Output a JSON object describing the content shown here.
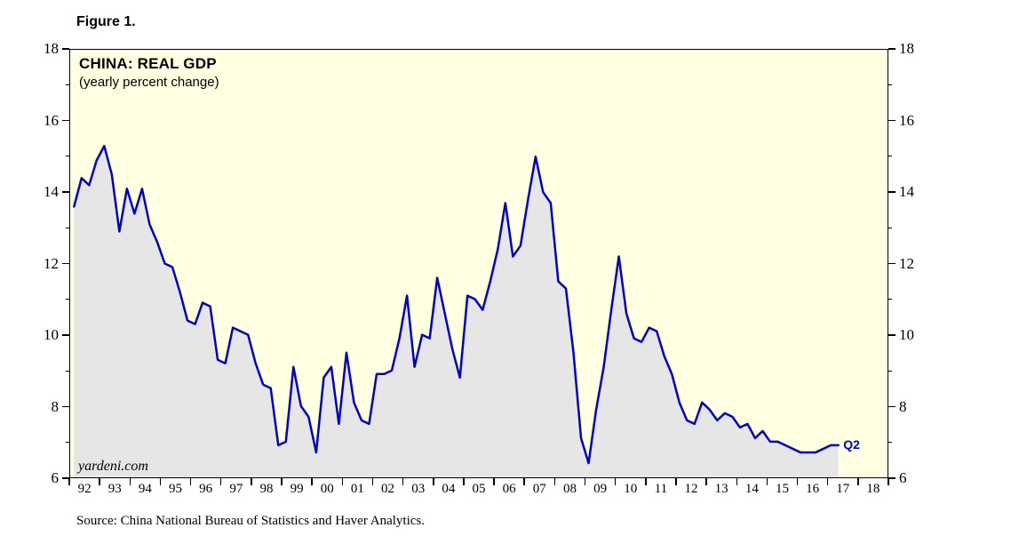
{
  "figure_label": "Figure 1.",
  "source_note": "Source: China National Bureau of Statistics and Haver Analytics.",
  "chart_data": {
    "type": "line",
    "title": "CHINA: REAL GDP",
    "subtitle": "(yearly percent change)",
    "watermark": "yardeni.com",
    "end_label": "Q2",
    "legend": "none",
    "grid": false,
    "ylim": [
      6,
      18
    ],
    "y_major_ticks": [
      6,
      8,
      10,
      12,
      14,
      16,
      18
    ],
    "y_minor_ticks": [
      7,
      9,
      11,
      13,
      15,
      17
    ],
    "x_start": 1992,
    "x_end": 2019,
    "x_tick_labels": [
      "92",
      "93",
      "94",
      "95",
      "96",
      "97",
      "98",
      "99",
      "00",
      "01",
      "02",
      "03",
      "04",
      "05",
      "06",
      "07",
      "08",
      "09",
      "10",
      "11",
      "12",
      "13",
      "14",
      "15",
      "16",
      "17",
      "18"
    ],
    "colors": {
      "line": "#0000CC",
      "area": "#E6E6E6",
      "plot_background": "#FFFFE1",
      "axis": "#000000",
      "end_label": "#0000CC"
    },
    "series": [
      {
        "name": "China real GDP, yearly percent change (quarterly)",
        "frequency": "quarterly",
        "start_year": 1992,
        "values": [
          13.6,
          14.4,
          14.2,
          14.9,
          15.3,
          14.5,
          12.9,
          14.1,
          13.4,
          14.1,
          13.1,
          12.6,
          12.0,
          11.9,
          11.2,
          10.4,
          10.3,
          10.9,
          10.8,
          9.3,
          9.2,
          10.2,
          10.1,
          10.0,
          9.2,
          8.6,
          8.5,
          6.9,
          7.0,
          9.1,
          8.0,
          7.7,
          6.7,
          8.8,
          9.1,
          7.5,
          9.5,
          8.1,
          7.6,
          7.5,
          8.9,
          8.9,
          9.0,
          9.9,
          11.1,
          9.1,
          10.0,
          9.9,
          11.6,
          10.6,
          9.6,
          8.8,
          11.1,
          11.0,
          10.7,
          11.5,
          12.4,
          13.7,
          12.2,
          12.5,
          13.8,
          15.0,
          14.0,
          13.7,
          11.5,
          11.3,
          9.5,
          7.1,
          6.4,
          7.9,
          9.1,
          10.7,
          12.2,
          10.6,
          9.9,
          9.8,
          10.2,
          10.1,
          9.4,
          8.9,
          8.1,
          7.6,
          7.5,
          8.1,
          7.9,
          7.6,
          7.8,
          7.7,
          7.4,
          7.5,
          7.1,
          7.3,
          7.0,
          7.0,
          6.9,
          6.8,
          6.7,
          6.7,
          6.7,
          6.8,
          6.9,
          6.9
        ]
      }
    ]
  }
}
